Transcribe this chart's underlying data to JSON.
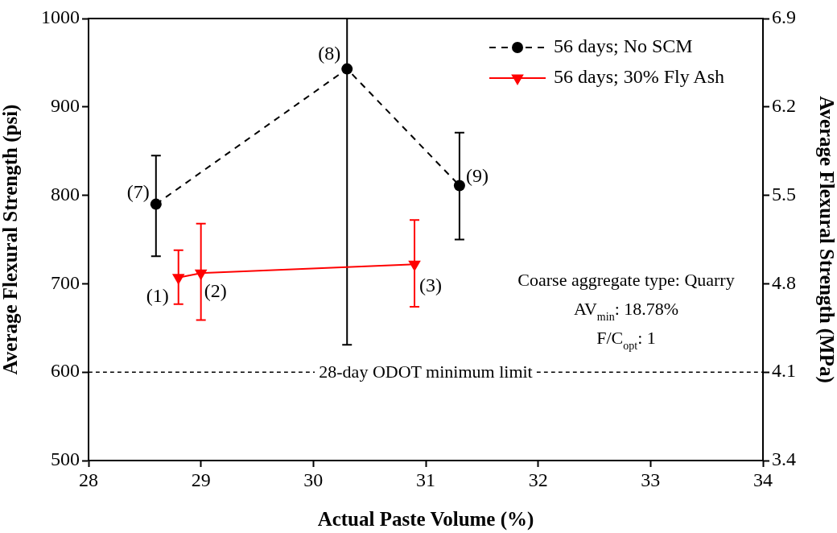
{
  "chart_data": {
    "type": "line",
    "xlabel": "Actual Paste Volume (%)",
    "ylabel": "Average Flexural Strength (psi)",
    "y2label": "Average Flexural Strength (MPa)",
    "xlim": [
      28,
      34
    ],
    "xticks": [
      28,
      29,
      30,
      31,
      32,
      33,
      34
    ],
    "ylim": [
      500,
      1000
    ],
    "yticks": [
      500,
      600,
      700,
      800,
      900,
      1000
    ],
    "y2lim": [
      3.4,
      6.9
    ],
    "y2ticks": [
      3.4,
      4.1,
      4.8,
      5.5,
      6.2,
      6.9
    ],
    "grid": false,
    "legend": "top right",
    "series": [
      {
        "name": "56 days; No SCM",
        "color": "#000000",
        "marker": "circle",
        "line_style": "dashed",
        "x": [
          28.6,
          30.3,
          31.3
        ],
        "values": [
          790,
          943,
          811
        ],
        "errors": [
          [
            731,
            845
          ],
          [
            631,
            1000
          ],
          [
            750,
            871
          ]
        ]
      },
      {
        "name": "56 days; 30% Fly Ash",
        "color": "#ff0000",
        "marker": "triangle",
        "line_style": "solid",
        "x": [
          28.8,
          29,
          30.9
        ],
        "values": [
          707,
          712,
          722
        ],
        "errors": [
          [
            677,
            738
          ],
          [
            659,
            768
          ],
          [
            674,
            772
          ]
        ]
      }
    ],
    "ref_lines": [
      {
        "axis": "y",
        "value": 600,
        "label": "28-day ODOT minimum limit",
        "color": "#000000",
        "line_style": "dashed"
      }
    ],
    "annotations": [
      {
        "text": "(7)",
        "x": 28.6,
        "y": 790
      },
      {
        "text": "(8)",
        "x": 30.3,
        "y": 943
      },
      {
        "text": "(9)",
        "x": 31.3,
        "y": 811
      },
      {
        "text": "(1)",
        "x": 28.8,
        "y": 707
      },
      {
        "text": "(2)",
        "x": 29,
        "y": 712
      },
      {
        "text": "(3)",
        "x": 30.9,
        "y": 722
      },
      "Coarse aggregate type: Quarry",
      "AV$_{min}$: 18.78%",
      "F/C$_{opt}$: 1"
    ]
  }
}
